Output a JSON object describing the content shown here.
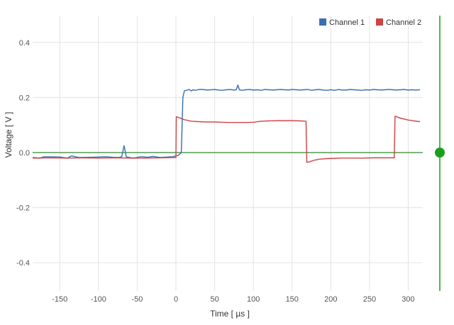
{
  "chart_data": {
    "type": "line",
    "xlabel": "Time [ µs ]",
    "ylabel": "Voltage [ V ]",
    "xlim": [
      -185,
      318
    ],
    "ylim": [
      -0.5,
      0.5
    ],
    "xticks": [
      -150,
      -100,
      -50,
      0,
      50,
      100,
      150,
      200,
      250,
      300
    ],
    "yticks": [
      0.4,
      0.2,
      0.0,
      -0.2,
      -0.4
    ],
    "ytick_labels": [
      "0.4",
      "0.2",
      "0.0",
      "-0.2",
      "-0.4"
    ],
    "legend_position": "top-right",
    "grid": true,
    "series": [
      {
        "name": "Channel 1",
        "color": "#3a6fb0",
        "x": [
          -185,
          -176,
          -170,
          -150,
          -140,
          -135,
          -125,
          -108,
          -90,
          -82,
          -74,
          -70,
          -67,
          -64,
          -55,
          -45,
          -36,
          -30,
          -20,
          -10,
          -4,
          0,
          3,
          7,
          8,
          9,
          11,
          14,
          17,
          20,
          22,
          25,
          30,
          35,
          40,
          45,
          50,
          55,
          60,
          65,
          70,
          75,
          78,
          80,
          82,
          85,
          90,
          95,
          100,
          105,
          110,
          115,
          120,
          125,
          130,
          135,
          140,
          145,
          150,
          155,
          160,
          165,
          170,
          175,
          180,
          185,
          190,
          195,
          200,
          205,
          210,
          212,
          215,
          220,
          225,
          230,
          235,
          240,
          245,
          250,
          255,
          260,
          265,
          270,
          275,
          280,
          285,
          290,
          295,
          300,
          305,
          310,
          315
        ],
        "y": [
          -0.018,
          -0.02,
          -0.015,
          -0.016,
          -0.02,
          -0.012,
          -0.018,
          -0.017,
          -0.015,
          -0.017,
          -0.018,
          -0.015,
          0.025,
          -0.016,
          -0.02,
          -0.015,
          -0.017,
          -0.014,
          -0.018,
          -0.016,
          -0.015,
          -0.012,
          -0.01,
          0.0,
          0.1,
          0.2,
          0.225,
          0.226,
          0.229,
          0.224,
          0.228,
          0.226,
          0.229,
          0.229,
          0.227,
          0.228,
          0.229,
          0.227,
          0.226,
          0.228,
          0.229,
          0.227,
          0.228,
          0.245,
          0.228,
          0.226,
          0.228,
          0.229,
          0.227,
          0.228,
          0.226,
          0.229,
          0.228,
          0.227,
          0.228,
          0.229,
          0.228,
          0.227,
          0.229,
          0.228,
          0.227,
          0.228,
          0.229,
          0.226,
          0.228,
          0.229,
          0.227,
          0.226,
          0.228,
          0.226,
          0.229,
          0.228,
          0.227,
          0.227,
          0.229,
          0.228,
          0.227,
          0.226,
          0.228,
          0.227,
          0.229,
          0.228,
          0.227,
          0.228,
          0.229,
          0.228,
          0.227,
          0.228,
          0.229,
          0.227,
          0.228,
          0.227,
          0.228
        ]
      },
      {
        "name": "Channel 2",
        "color": "#cc4444",
        "x": [
          -185,
          -160,
          -140,
          -120,
          -100,
          -80,
          -60,
          -40,
          -20,
          -5,
          0,
          0.5,
          5,
          10,
          20,
          30,
          40,
          50,
          60,
          70,
          80,
          90,
          100,
          110,
          120,
          130,
          140,
          150,
          160,
          168,
          169,
          172,
          178,
          185,
          195,
          205,
          215,
          225,
          240,
          255,
          270,
          282,
          283,
          290,
          300,
          315
        ],
        "y": [
          -0.02,
          -0.019,
          -0.02,
          -0.019,
          -0.02,
          -0.019,
          -0.02,
          -0.02,
          -0.019,
          -0.018,
          -0.018,
          0.13,
          0.126,
          0.12,
          0.114,
          0.112,
          0.111,
          0.111,
          0.11,
          0.109,
          0.109,
          0.109,
          0.11,
          0.114,
          0.115,
          0.116,
          0.116,
          0.116,
          0.115,
          0.114,
          -0.035,
          -0.034,
          -0.028,
          -0.024,
          -0.022,
          -0.021,
          -0.02,
          -0.02,
          -0.02,
          -0.019,
          -0.019,
          -0.019,
          0.132,
          0.125,
          0.118,
          0.112
        ]
      }
    ],
    "reference_line": {
      "y": 0.0,
      "color": "#2a8a2a"
    },
    "trigger_marker": {
      "y": 0.0,
      "color": "#19a019"
    }
  }
}
